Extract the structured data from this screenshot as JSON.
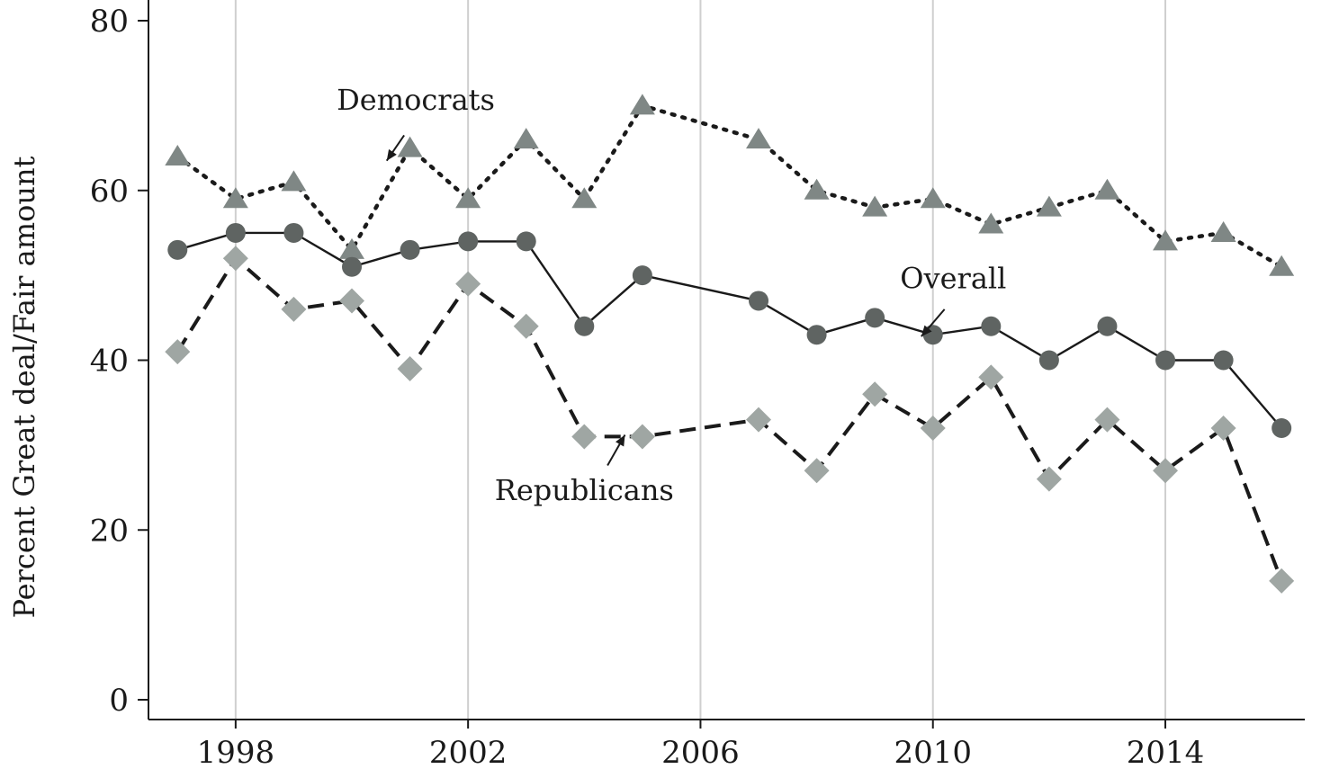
{
  "chart_data": {
    "type": "line",
    "title": "",
    "xlabel": "",
    "ylabel": "Percent Great deal/Fair amount",
    "xlim": [
      1996.5,
      2016.4
    ],
    "ylim": [
      0,
      80
    ],
    "xticks": [
      1998,
      2002,
      2006,
      2010,
      2014
    ],
    "yticks": [
      0,
      20,
      40,
      60,
      80
    ],
    "grid": "vertical",
    "legend": "none",
    "series": [
      {
        "name": "Democrats",
        "style": "dotted",
        "marker": "triangle",
        "color": "#7f8785",
        "points": [
          [
            1997,
            64
          ],
          [
            1998,
            59
          ],
          [
            1999,
            61
          ],
          [
            2000,
            53
          ],
          [
            2001,
            65
          ],
          [
            2002,
            59
          ],
          [
            2003,
            66
          ],
          [
            2004,
            59
          ],
          [
            2005,
            70
          ],
          [
            2007,
            66
          ],
          [
            2008,
            60
          ],
          [
            2009,
            58
          ],
          [
            2010,
            59
          ],
          [
            2011,
            56
          ],
          [
            2012,
            58
          ],
          [
            2013,
            60
          ],
          [
            2014,
            54
          ],
          [
            2015,
            55
          ],
          [
            2016,
            51
          ]
        ]
      },
      {
        "name": "Overall",
        "style": "solid",
        "marker": "circle",
        "color": "#5f6462",
        "points": [
          [
            1997,
            53
          ],
          [
            1998,
            55
          ],
          [
            1999,
            55
          ],
          [
            2000,
            51
          ],
          [
            2001,
            53
          ],
          [
            2002,
            54
          ],
          [
            2003,
            54
          ],
          [
            2004,
            44
          ],
          [
            2005,
            50
          ],
          [
            2007,
            47
          ],
          [
            2008,
            43
          ],
          [
            2009,
            45
          ],
          [
            2010,
            43
          ],
          [
            2011,
            44
          ],
          [
            2012,
            40
          ],
          [
            2013,
            44
          ],
          [
            2014,
            40
          ],
          [
            2015,
            40
          ],
          [
            2016,
            32
          ]
        ]
      },
      {
        "name": "Republicans",
        "style": "dashed",
        "marker": "diamond",
        "color": "#9fa6a3",
        "points": [
          [
            1997,
            41
          ],
          [
            1998,
            52
          ],
          [
            1999,
            46
          ],
          [
            2000,
            47
          ],
          [
            2001,
            39
          ],
          [
            2002,
            49
          ],
          [
            2003,
            44
          ],
          [
            2004,
            31
          ],
          [
            2005,
            31
          ],
          [
            2007,
            33
          ],
          [
            2008,
            27
          ],
          [
            2009,
            36
          ],
          [
            2010,
            32
          ],
          [
            2011,
            38
          ],
          [
            2012,
            26
          ],
          [
            2013,
            33
          ],
          [
            2014,
            27
          ],
          [
            2015,
            32
          ],
          [
            2016,
            14
          ]
        ]
      }
    ],
    "annotations": [
      {
        "text": "Democrats",
        "series": "Democrats",
        "label_at": [
          2001.1,
          69.5
        ],
        "arrow_from": [
          2000.9,
          66.5
        ],
        "arrow_to": [
          2000.6,
          63.5
        ]
      },
      {
        "text": "Overall",
        "series": "Overall",
        "label_at": [
          2010.35,
          48.5
        ],
        "arrow_from": [
          2010.2,
          46.0
        ],
        "arrow_to": [
          2009.8,
          42.8
        ]
      },
      {
        "text": "Republicans",
        "series": "Republicans",
        "label_at": [
          2004.0,
          23.5
        ],
        "arrow_from": [
          2004.4,
          27.6
        ],
        "arrow_to": [
          2004.7,
          31.2
        ]
      }
    ]
  }
}
